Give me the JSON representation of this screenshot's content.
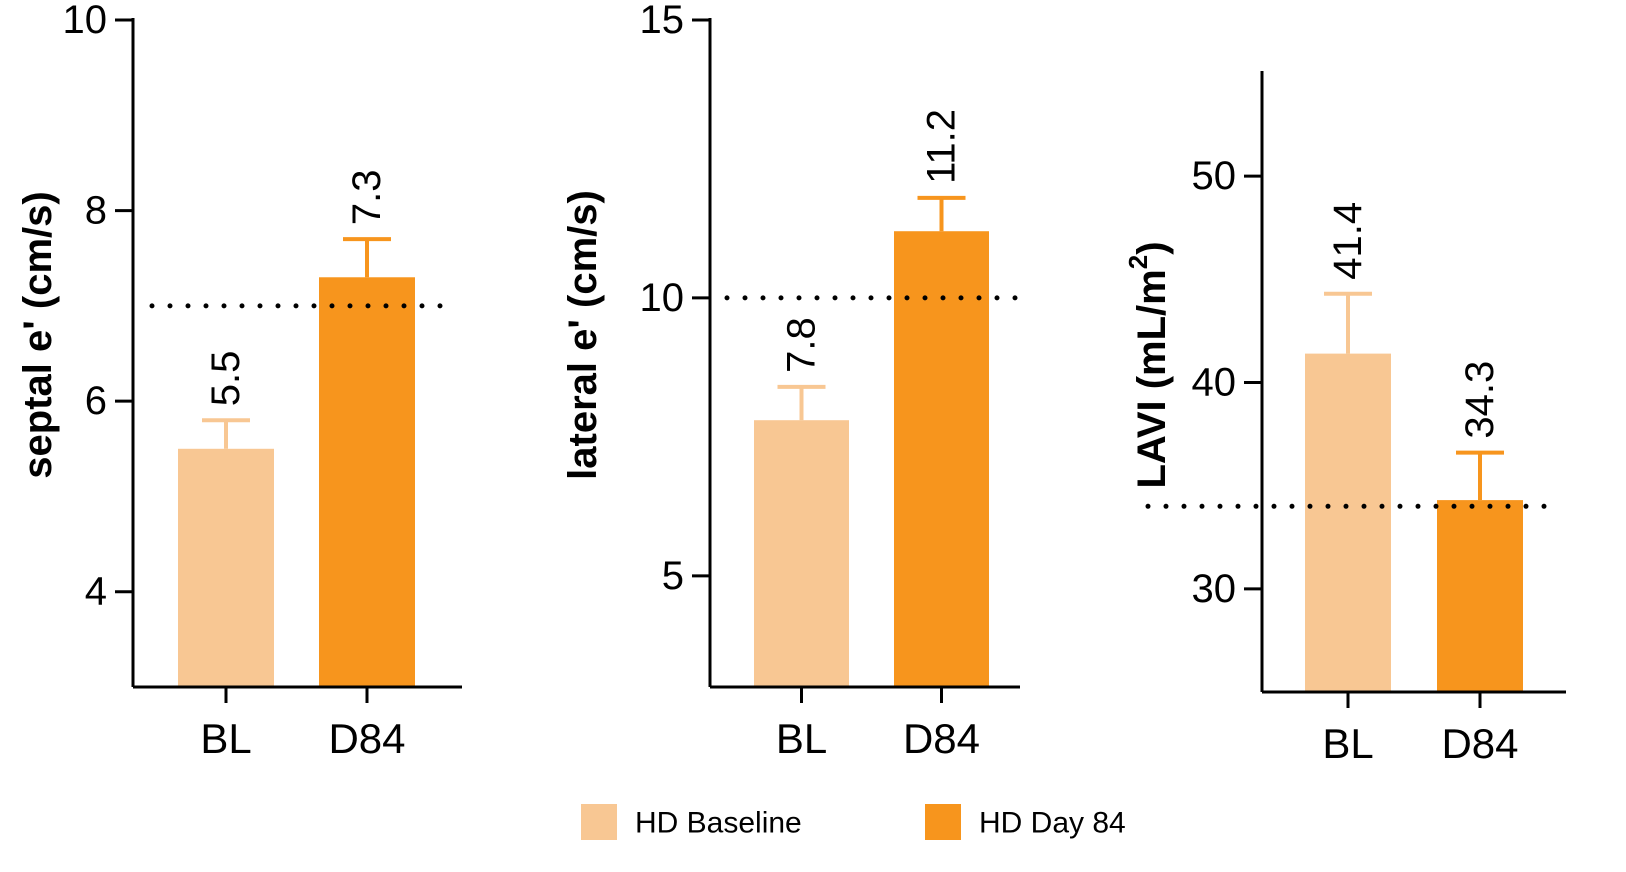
{
  "chart_data": [
    {
      "type": "bar",
      "ylabel": "septal e' (cm/s)",
      "ylim": [
        3,
        10
      ],
      "yticks": [
        4,
        6,
        8,
        10
      ],
      "categories": [
        "BL",
        "D84"
      ],
      "values": [
        5.5,
        7.3
      ],
      "value_labels": [
        "5.5",
        "7.3"
      ],
      "error_upper": [
        5.8,
        7.7
      ],
      "reference_line": 7,
      "colors": [
        "#F8C793",
        "#F7951D"
      ]
    },
    {
      "type": "bar",
      "ylabel": "lateral e' (cm/s)",
      "ylim": [
        3,
        15
      ],
      "yticks": [
        5,
        10,
        15
      ],
      "categories": [
        "BL",
        "D84"
      ],
      "values": [
        7.8,
        11.2
      ],
      "value_labels": [
        "7.8",
        "11.2"
      ],
      "error_upper": [
        8.4,
        11.8
      ],
      "reference_line": 10,
      "colors": [
        "#F8C793",
        "#F7951D"
      ]
    },
    {
      "type": "bar",
      "ylabel": "LAVI (mL/m",
      "ylabel_superscript": "2",
      "ylabel_suffix": ")",
      "ylim": [
        25,
        55
      ],
      "yticks": [
        30,
        40,
        50
      ],
      "categories": [
        "BL",
        "D84"
      ],
      "values": [
        41.4,
        34.3
      ],
      "value_labels": [
        "41.4",
        "34.3"
      ],
      "error_upper": [
        44.3,
        36.6
      ],
      "reference_line": 34,
      "colors": [
        "#F8C793",
        "#F7951D"
      ]
    }
  ],
  "legend": {
    "items": [
      {
        "label": "HD Baseline",
        "color": "#F8C793"
      },
      {
        "label": "HD Day 84",
        "color": "#F7951D"
      }
    ]
  }
}
